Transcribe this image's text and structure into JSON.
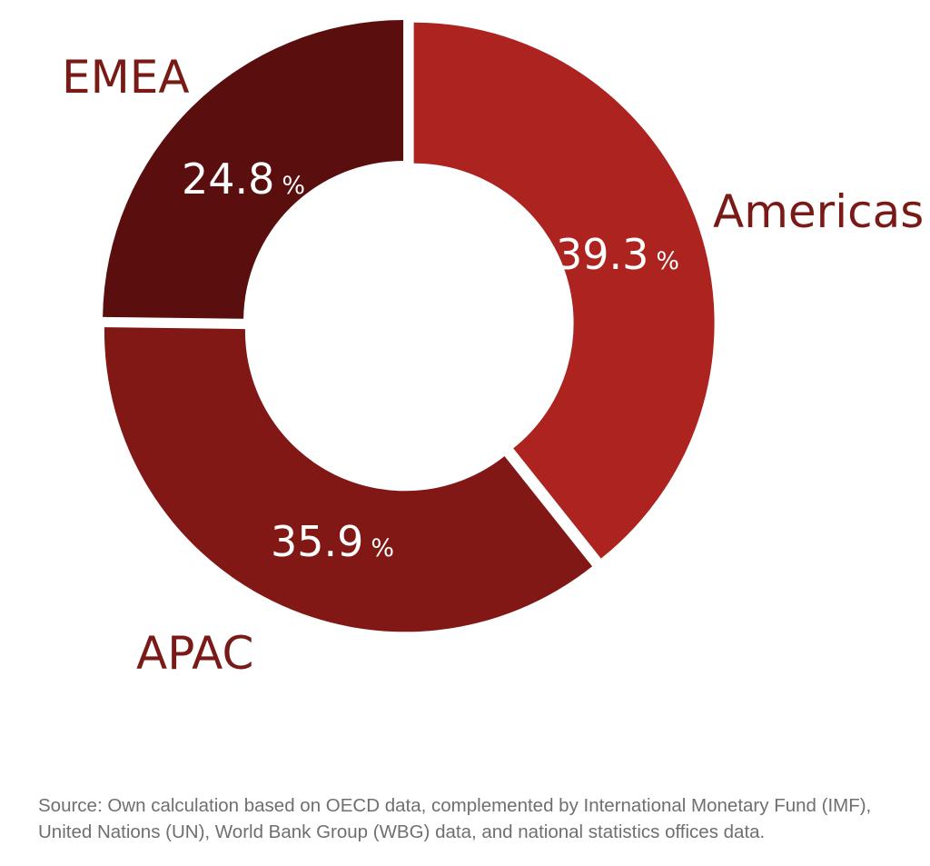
{
  "chart_data": {
    "type": "pie",
    "donut": true,
    "slices": [
      {
        "label": "Americas",
        "value": 39.3,
        "value_text": "39.3",
        "unit": "%",
        "color": "#ac2320"
      },
      {
        "label": "APAC",
        "value": 35.9,
        "value_text": "35.9",
        "unit": "%",
        "color": "#811815"
      },
      {
        "label": "EMEA",
        "value": 24.8,
        "value_text": "24.8",
        "unit": "%",
        "color": "#5a0e0e"
      }
    ],
    "start": "12 o'clock, clockwise",
    "label_color": "#7a1a16",
    "value_label_color": "#ffffff"
  },
  "source": "Source: Own calculation based on OECD data, complemented by International Monetary Fund (IMF), United Nations (UN), World Bank Group (WBG) data, and national statistics offices data."
}
